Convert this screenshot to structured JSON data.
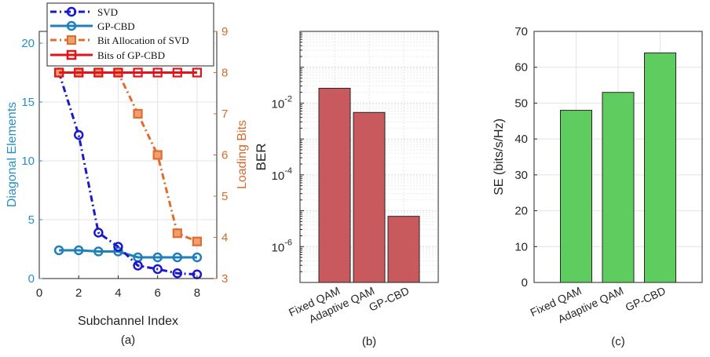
{
  "colors": {
    "svd": "#1a1acc",
    "gp": "#1f7fb8",
    "bitsvd": "#e06c2e",
    "bitgp": "#e0141b",
    "leftaxis": "#2a8fc4",
    "rightaxis": "#d56a2a",
    "ber_bar": "#c85a5e",
    "se_bar": "#5fcc5f",
    "grid": "#e4e4e4"
  },
  "chart_data": [
    {
      "type": "line",
      "caption": "(a)",
      "xlabel": "Subchannel Index",
      "ylabel_left": "Diagonal Elements",
      "ylabel_right": "Loading Bits",
      "xlim": [
        0,
        9
      ],
      "xticks": [
        "0",
        "2",
        "4",
        "6",
        "8"
      ],
      "ylim_left": [
        0,
        21
      ],
      "yticks_left": [
        "0",
        "5",
        "10",
        "15",
        "20"
      ],
      "ylim_right": [
        3,
        9
      ],
      "yticks_right": [
        "3",
        "4",
        "5",
        "6",
        "7",
        "8",
        "9"
      ],
      "x": [
        1,
        2,
        3,
        4,
        5,
        6,
        7,
        8
      ],
      "series": [
        {
          "name": "SVD",
          "axis": "left",
          "values": [
            17.5,
            12.2,
            3.9,
            2.7,
            1.1,
            0.8,
            0.45,
            0.35
          ]
        },
        {
          "name": "GP-CBD",
          "axis": "left",
          "values": [
            2.4,
            2.4,
            2.3,
            2.3,
            1.8,
            1.8,
            1.8,
            1.8
          ]
        },
        {
          "name": "Bit Allocation of SVD",
          "axis": "right",
          "values": [
            8,
            8,
            8,
            8,
            7,
            6,
            4.1,
            3.9
          ]
        },
        {
          "name": "Bits of GP-CBD",
          "axis": "right",
          "values": [
            8,
            8,
            8,
            8,
            8,
            8,
            8,
            8
          ]
        }
      ]
    },
    {
      "type": "bar",
      "caption": "(b)",
      "ylabel": "BER",
      "yscale": "log",
      "ylim": [
        1e-07,
        1
      ],
      "ytick_exponents": [
        "-6",
        "-4",
        "-2"
      ],
      "ytick_base": "10",
      "categories": [
        "Fixed QAM",
        "Adaptive QAM",
        "GP-CBD"
      ],
      "values": [
        0.026,
        0.0055,
        7e-06
      ]
    },
    {
      "type": "bar",
      "caption": "(c)",
      "ylabel": "SE (bits/s/Hz)",
      "ylim": [
        0,
        70
      ],
      "yticks": [
        "0",
        "10",
        "20",
        "30",
        "40",
        "50",
        "60",
        "70"
      ],
      "categories": [
        "Fixed QAM",
        "Adaptive QAM",
        "GP-CBD"
      ],
      "values": [
        48,
        53,
        64
      ]
    }
  ]
}
